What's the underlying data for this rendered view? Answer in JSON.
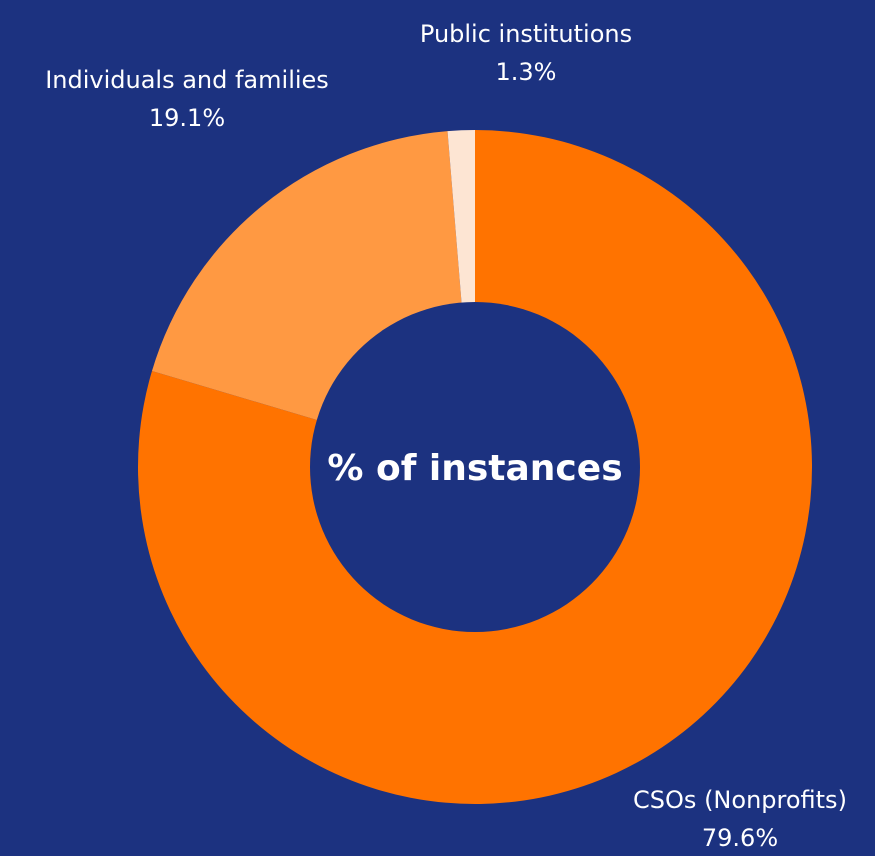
{
  "chart_data": {
    "type": "pie",
    "donut": true,
    "center_label": "% of instances",
    "start_angle_deg": 0,
    "direction": "clockwise",
    "slices": [
      {
        "label": "CSOs (Nonprofits)",
        "value": 79.6,
        "display": "79.6%",
        "color": "#ff7300"
      },
      {
        "label": "Individuals and families",
        "value": 19.1,
        "display": "19.1%",
        "color": "#ff9942"
      },
      {
        "label": "Public institutions",
        "value": 1.3,
        "display": "1.3%",
        "color": "#fde5d3"
      }
    ]
  },
  "colors": {
    "background": "#1c3280",
    "text": "#ffffff"
  }
}
